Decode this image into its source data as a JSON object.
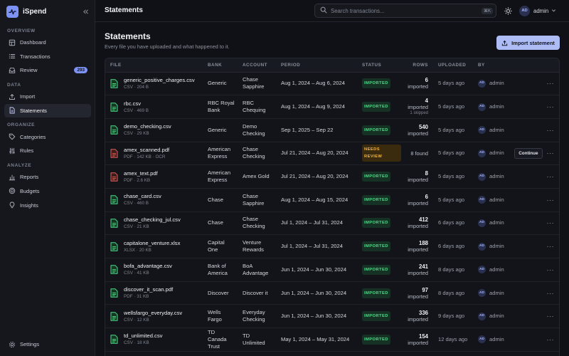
{
  "app": {
    "name": "iSpend"
  },
  "sidebar": {
    "sections": [
      {
        "title": "OVERVIEW",
        "items": [
          {
            "label": "Dashboard",
            "icon": "dashboard-icon"
          },
          {
            "label": "Transactions",
            "icon": "list-icon"
          },
          {
            "label": "Review",
            "icon": "inbox-icon",
            "badge": "293"
          }
        ]
      },
      {
        "title": "DATA",
        "items": [
          {
            "label": "Import",
            "icon": "upload-icon"
          },
          {
            "label": "Statements",
            "icon": "file-icon",
            "active": true
          }
        ]
      },
      {
        "title": "ORGANIZE",
        "items": [
          {
            "label": "Categories",
            "icon": "tag-icon"
          },
          {
            "label": "Rules",
            "icon": "sliders-icon"
          }
        ]
      },
      {
        "title": "ANALYZE",
        "items": [
          {
            "label": "Reports",
            "icon": "chart-icon"
          },
          {
            "label": "Budgets",
            "icon": "target-icon"
          },
          {
            "label": "Insights",
            "icon": "bulb-icon"
          }
        ]
      }
    ],
    "settings_label": "Settings"
  },
  "topbar": {
    "title": "Statements",
    "search_placeholder": "Search transactions...",
    "shortcut": "⌘K",
    "user": {
      "initials": "AD",
      "name": "admin"
    }
  },
  "page": {
    "title": "Statements",
    "subtitle": "Every file you have uploaded and what happened to it.",
    "import_button": "Import statement"
  },
  "table": {
    "columns": [
      "FILE",
      "BANK",
      "ACCOUNT",
      "PERIOD",
      "STATUS",
      "ROWS",
      "UPLOADED",
      "BY"
    ],
    "continue_label": "Continue",
    "rows": [
      {
        "file": "generic_positive_charges.csv",
        "meta": "CSV · 204 B",
        "type": "csv",
        "bank": [
          "Generic"
        ],
        "account": [
          "Chase",
          "Sapphire"
        ],
        "period": "Aug 1, 2024 – Aug 6, 2024",
        "status": "IMPORTED",
        "rows_num": "6",
        "rows_label": "imported",
        "uploaded": "5 days ago",
        "by": "admin"
      },
      {
        "file": "rbc.csv",
        "meta": "CSV · 469 B",
        "type": "csv",
        "bank": [
          "RBC Royal",
          "Bank"
        ],
        "account": [
          "RBC",
          "Chequing"
        ],
        "period": "Aug 1, 2024 – Aug 9, 2024",
        "status": "IMPORTED",
        "rows_num": "4",
        "rows_label": "imported",
        "rows_skip": "1 skipped",
        "uploaded": "5 days ago",
        "by": "admin"
      },
      {
        "file": "demo_checking.csv",
        "meta": "CSV · 29 KB",
        "type": "csv",
        "bank": [
          "Generic"
        ],
        "account": [
          "Demo",
          "Checking"
        ],
        "period": "Sep 1, 2025 – Sep 22",
        "status": "IMPORTED",
        "rows_num": "540",
        "rows_label": "imported",
        "uploaded": "5 days ago",
        "by": "admin"
      },
      {
        "file": "amex_scanned.pdf",
        "meta": "PDF · 142 KB · OCR",
        "type": "pdf",
        "bank": [
          "American",
          "Express"
        ],
        "account": [
          "Chase",
          "Checking"
        ],
        "period": "Jul 21, 2024 – Aug 20, 2024",
        "status": "NEEDS REVIEW",
        "rows_found": "8 found",
        "uploaded": "5 days ago",
        "by": "admin",
        "continue": true
      },
      {
        "file": "amex_text.pdf",
        "meta": "PDF · 2.6 KB",
        "type": "pdf",
        "bank": [
          "American",
          "Express"
        ],
        "account": [
          "Amex Gold"
        ],
        "period": "Jul 21, 2024 – Aug 20, 2024",
        "status": "IMPORTED",
        "rows_num": "8",
        "rows_label": "imported",
        "uploaded": "5 days ago",
        "by": "admin"
      },
      {
        "file": "chase_card.csv",
        "meta": "CSV · 460 B",
        "type": "csv",
        "bank": [
          "Chase"
        ],
        "account": [
          "Chase",
          "Sapphire"
        ],
        "period": "Aug 1, 2024 – Aug 15, 2024",
        "status": "IMPORTED",
        "rows_num": "6",
        "rows_label": "imported",
        "uploaded": "5 days ago",
        "by": "admin"
      },
      {
        "file": "chase_checking_jul.csv",
        "meta": "CSV · 21 KB",
        "type": "csv",
        "bank": [
          "Chase"
        ],
        "account": [
          "Chase",
          "Checking"
        ],
        "period": "Jul 1, 2024 – Jul 31, 2024",
        "status": "IMPORTED",
        "rows_num": "412",
        "rows_label": "imported",
        "uploaded": "6 days ago",
        "by": "admin"
      },
      {
        "file": "capitalone_venture.xlsx",
        "meta": "XLSX · 20 KB",
        "type": "xlsx",
        "bank": [
          "Capital",
          "One"
        ],
        "account": [
          "Venture",
          "Rewards"
        ],
        "period": "Jul 1, 2024 – Jul 31, 2024",
        "status": "IMPORTED",
        "rows_num": "188",
        "rows_label": "imported",
        "uploaded": "6 days ago",
        "by": "admin"
      },
      {
        "file": "bofa_advantage.csv",
        "meta": "CSV · 41 KB",
        "type": "csv",
        "bank": [
          "Bank of",
          "America"
        ],
        "account": [
          "BoA",
          "Advantage"
        ],
        "period": "Jun 1, 2024 – Jun 30, 2024",
        "status": "IMPORTED",
        "rows_num": "241",
        "rows_label": "imported",
        "uploaded": "8 days ago",
        "by": "admin"
      },
      {
        "file": "discover_it_scan.pdf",
        "meta": "PDF · 31 KB",
        "type": "pdf-green",
        "bank": [
          "Discover"
        ],
        "account": [
          "Discover it"
        ],
        "period": "Jun 1, 2024 – Jun 30, 2024",
        "status": "IMPORTED",
        "rows_num": "97",
        "rows_label": "imported",
        "uploaded": "8 days ago",
        "by": "admin"
      },
      {
        "file": "wellsfargo_everyday.csv",
        "meta": "CSV · 12 KB",
        "type": "csv",
        "bank": [
          "Wells",
          "Fargo"
        ],
        "account": [
          "Everyday",
          "Checking"
        ],
        "period": "Jun 1, 2024 – Jun 30, 2024",
        "status": "IMPORTED",
        "rows_num": "336",
        "rows_label": "imported",
        "uploaded": "9 days ago",
        "by": "admin"
      },
      {
        "file": "td_unlimited.csv",
        "meta": "CSV · 18 KB",
        "type": "csv",
        "bank": [
          "TD",
          "Canada",
          "Trust"
        ],
        "account": [
          "TD",
          "Unlimited"
        ],
        "period": "May 1, 2024 – May 31, 2024",
        "status": "IMPORTED",
        "rows_num": "154",
        "rows_label": "imported",
        "uploaded": "12 days ago",
        "by": "admin"
      }
    ]
  },
  "colors": {
    "accent": "#7d92f5",
    "imported": "#4ede8a",
    "review": "#f4b43d",
    "pdf": "#e0605a"
  }
}
